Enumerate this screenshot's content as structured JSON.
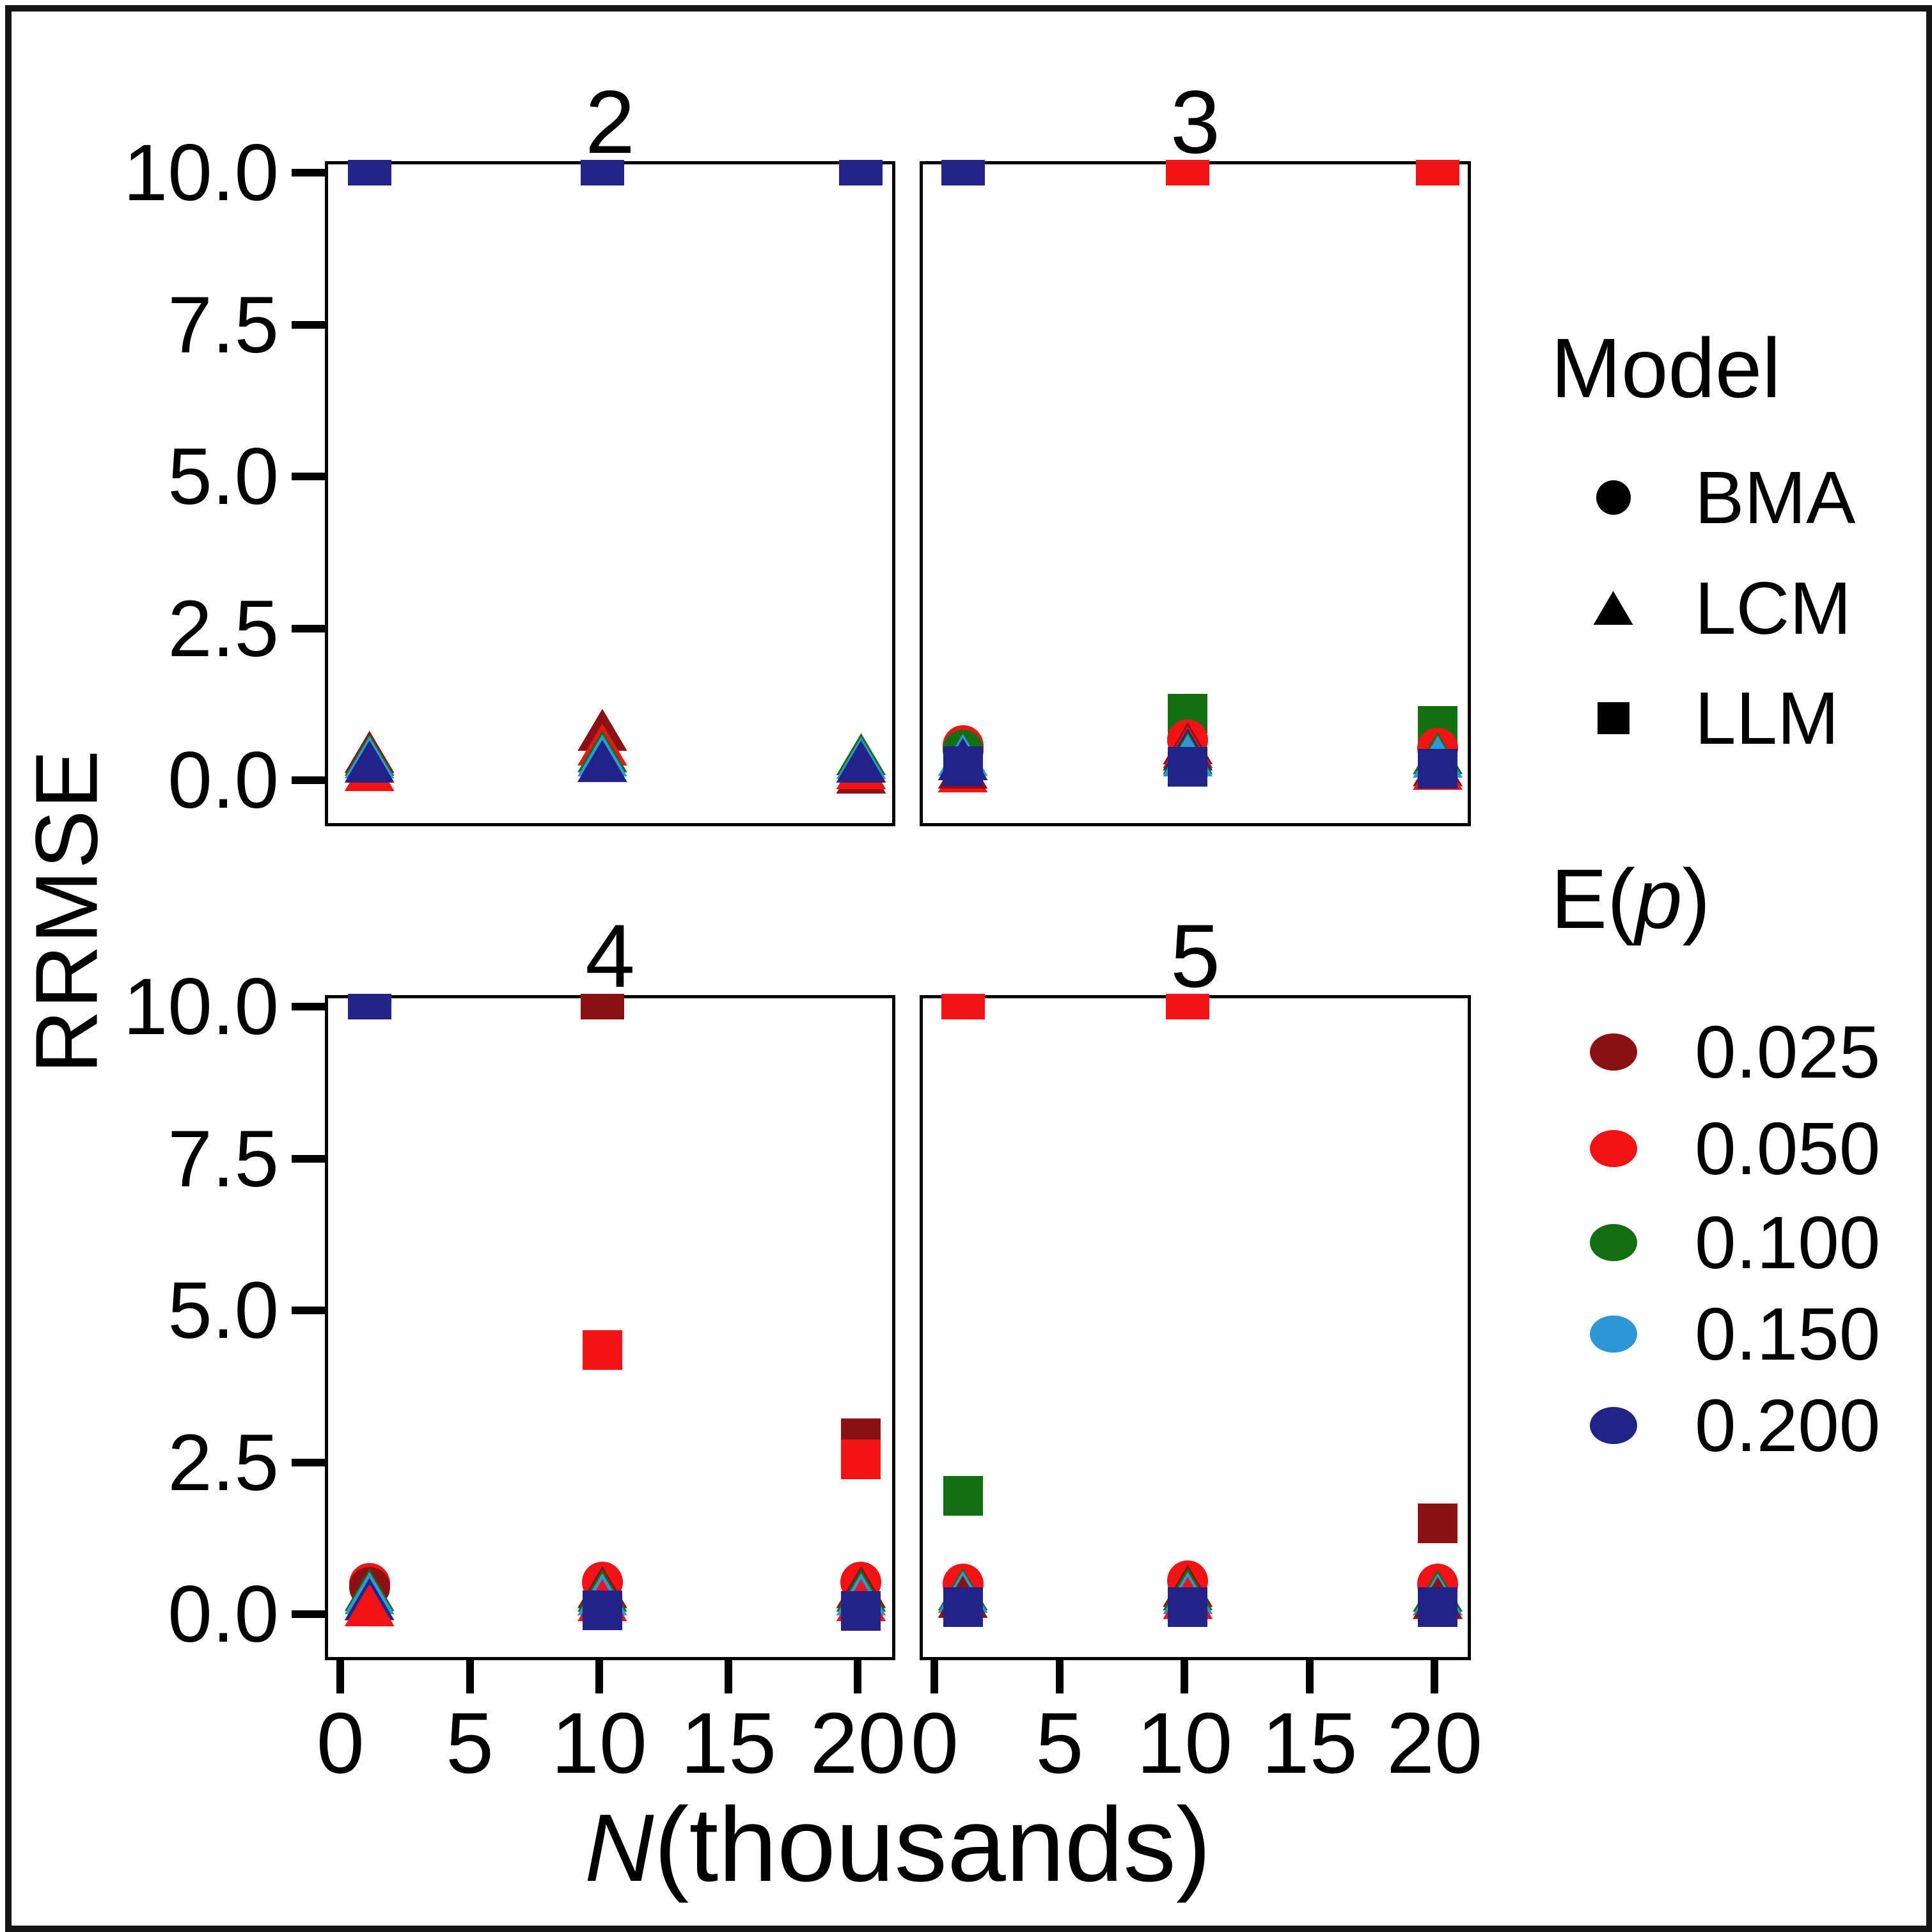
{
  "figure": {
    "y_axis_title": "RRMSE",
    "x_axis_title_var": "N",
    "x_axis_title_rest": "(thousands)"
  },
  "axes": {
    "y_ticks": [
      {
        "v": 10.0,
        "label": "10.0"
      },
      {
        "v": 7.5,
        "label": "7.5"
      },
      {
        "v": 5.0,
        "label": "5.0"
      },
      {
        "v": 2.5,
        "label": "2.5"
      },
      {
        "v": 0.0,
        "label": "0.0"
      }
    ],
    "x_ticks": [
      {
        "v": 0,
        "label": "0"
      },
      {
        "v": 5,
        "label": "5"
      },
      {
        "v": 10,
        "label": "10"
      },
      {
        "v": 15,
        "label": "15"
      },
      {
        "v": 20,
        "label": "20"
      }
    ]
  },
  "legend_model": {
    "title": "Model",
    "items": [
      {
        "label": "BMA",
        "shape": "circle"
      },
      {
        "label": "LCM",
        "shape": "triangle"
      },
      {
        "label": "LLM",
        "shape": "square"
      }
    ]
  },
  "legend_ep": {
    "title_pre": "E(",
    "title_var": "p",
    "title_post": ")",
    "items": [
      {
        "label": "0.025",
        "color": "#8b1212"
      },
      {
        "label": "0.050",
        "color": "#f31316"
      },
      {
        "label": "0.100",
        "color": "#127012"
      },
      {
        "label": "0.150",
        "color": "#2f97d7"
      },
      {
        "label": "0.200",
        "color": "#232387"
      }
    ]
  },
  "chart_data": {
    "type": "scatter",
    "title": "",
    "xlabel": "N (thousands)",
    "ylabel": "RRMSE",
    "x_range": [
      0,
      20
    ],
    "y_range": [
      0,
      10
    ],
    "grid": false,
    "legend_position": "right",
    "facet_values": [
      "2",
      "3",
      "4",
      "5"
    ],
    "model_shapes": {
      "BMA": "circle",
      "LCM": "triangle",
      "LLM": "square"
    },
    "ep_colors": {
      "0.025": "#8b1212",
      "0.050": "#f31316",
      "0.100": "#127012",
      "0.150": "#2f97d7",
      "0.200": "#232387"
    },
    "clip_note": "points with clipped=true sit above the visible axis limit (~10.4) at the panel top edge",
    "facets": [
      {
        "title": "2",
        "points": [
          {
            "x": 1,
            "y": 10.4,
            "model": "LLM",
            "ep": "0.200",
            "clipped": true
          },
          {
            "x": 10,
            "y": 10.4,
            "model": "LLM",
            "ep": "0.200",
            "clipped": true
          },
          {
            "x": 20,
            "y": 10.4,
            "model": "LLM",
            "ep": "0.200",
            "clipped": true
          },
          {
            "x": 1,
            "y": 0.22,
            "model": "LCM",
            "ep": "0.050"
          },
          {
            "x": 1,
            "y": 0.52,
            "model": "LCM",
            "ep": "0.025"
          },
          {
            "x": 1,
            "y": 0.47,
            "model": "LCM",
            "ep": "0.100"
          },
          {
            "x": 1,
            "y": 0.43,
            "model": "LCM",
            "ep": "0.150"
          },
          {
            "x": 1,
            "y": 0.36,
            "model": "LCM",
            "ep": "0.200"
          },
          {
            "x": 10,
            "y": 0.88,
            "model": "LCM",
            "ep": "0.025"
          },
          {
            "x": 10,
            "y": 0.64,
            "model": "LCM",
            "ep": "0.050"
          },
          {
            "x": 10,
            "y": 0.53,
            "model": "LCM",
            "ep": "0.100"
          },
          {
            "x": 10,
            "y": 0.46,
            "model": "LCM",
            "ep": "0.150"
          },
          {
            "x": 10,
            "y": 0.37,
            "model": "LCM",
            "ep": "0.200"
          },
          {
            "x": 20,
            "y": 0.18,
            "model": "LCM",
            "ep": "0.025"
          },
          {
            "x": 20,
            "y": 0.25,
            "model": "LCM",
            "ep": "0.050"
          },
          {
            "x": 20,
            "y": 0.48,
            "model": "LCM",
            "ep": "0.100"
          },
          {
            "x": 20,
            "y": 0.42,
            "model": "LCM",
            "ep": "0.150"
          },
          {
            "x": 20,
            "y": 0.36,
            "model": "LCM",
            "ep": "0.200"
          }
        ]
      },
      {
        "title": "3",
        "points": [
          {
            "x": 1,
            "y": 10.4,
            "model": "LLM",
            "ep": "0.200",
            "clipped": true
          },
          {
            "x": 10,
            "y": 10.4,
            "model": "LLM",
            "ep": "0.050",
            "clipped": true
          },
          {
            "x": 20,
            "y": 10.4,
            "model": "LLM",
            "ep": "0.050",
            "clipped": true
          },
          {
            "x": 1,
            "y": 0.2,
            "model": "LCM",
            "ep": "0.050"
          },
          {
            "x": 1,
            "y": 0.26,
            "model": "LCM",
            "ep": "0.025"
          },
          {
            "x": 1,
            "y": 0.62,
            "model": "BMA",
            "ep": "0.050"
          },
          {
            "x": 1,
            "y": 0.55,
            "model": "BMA",
            "ep": "0.100"
          },
          {
            "x": 1,
            "y": 0.47,
            "model": "LCM",
            "ep": "0.150"
          },
          {
            "x": 1,
            "y": 0.4,
            "model": "LCM",
            "ep": "0.200"
          },
          {
            "x": 1,
            "y": 0.28,
            "model": "LLM",
            "ep": "0.200"
          },
          {
            "x": 10,
            "y": 1.15,
            "model": "LLM",
            "ep": "0.100"
          },
          {
            "x": 10,
            "y": 0.72,
            "model": "BMA",
            "ep": "0.050"
          },
          {
            "x": 10,
            "y": 0.66,
            "model": "LCM",
            "ep": "0.025"
          },
          {
            "x": 10,
            "y": 0.6,
            "model": "LCM",
            "ep": "0.050"
          },
          {
            "x": 10,
            "y": 0.56,
            "model": "LCM",
            "ep": "0.200"
          },
          {
            "x": 10,
            "y": 0.5,
            "model": "LCM",
            "ep": "0.100"
          },
          {
            "x": 10,
            "y": 0.46,
            "model": "LCM",
            "ep": "0.150"
          },
          {
            "x": 10,
            "y": 0.27,
            "model": "LLM",
            "ep": "0.200"
          },
          {
            "x": 20,
            "y": 0.95,
            "model": "LLM",
            "ep": "0.100"
          },
          {
            "x": 20,
            "y": 0.58,
            "model": "BMA",
            "ep": "0.050"
          },
          {
            "x": 20,
            "y": 0.3,
            "model": "LCM",
            "ep": "0.025"
          },
          {
            "x": 20,
            "y": 0.24,
            "model": "LCM",
            "ep": "0.050"
          },
          {
            "x": 20,
            "y": 0.5,
            "model": "LCM",
            "ep": "0.100"
          },
          {
            "x": 20,
            "y": 0.44,
            "model": "LCM",
            "ep": "0.150"
          },
          {
            "x": 20,
            "y": 0.24,
            "model": "LLM",
            "ep": "0.200"
          }
        ]
      },
      {
        "title": "4",
        "points": [
          {
            "x": 1,
            "y": 10.4,
            "model": "LLM",
            "ep": "0.200",
            "clipped": true
          },
          {
            "x": 10,
            "y": 10.4,
            "model": "LLM",
            "ep": "0.025",
            "clipped": true
          },
          {
            "x": 10,
            "y": 4.4,
            "model": "LLM",
            "ep": "0.050"
          },
          {
            "x": 20,
            "y": 2.95,
            "model": "LLM",
            "ep": "0.025"
          },
          {
            "x": 20,
            "y": 2.6,
            "model": "LLM",
            "ep": "0.050"
          },
          {
            "x": 1,
            "y": 0.56,
            "model": "BMA",
            "ep": "0.050"
          },
          {
            "x": 1,
            "y": 0.5,
            "model": "BMA",
            "ep": "0.025"
          },
          {
            "x": 1,
            "y": 0.45,
            "model": "LCM",
            "ep": "0.100"
          },
          {
            "x": 1,
            "y": 0.4,
            "model": "LCM",
            "ep": "0.150"
          },
          {
            "x": 1,
            "y": 0.3,
            "model": "LCM",
            "ep": "0.200"
          },
          {
            "x": 1,
            "y": 0.2,
            "model": "LCM",
            "ep": "0.050"
          },
          {
            "x": 10,
            "y": 0.58,
            "model": "BMA",
            "ep": "0.050"
          },
          {
            "x": 10,
            "y": 0.5,
            "model": "LCM",
            "ep": "0.025"
          },
          {
            "x": 10,
            "y": 0.44,
            "model": "LCM",
            "ep": "0.100"
          },
          {
            "x": 10,
            "y": 0.38,
            "model": "LCM",
            "ep": "0.150"
          },
          {
            "x": 10,
            "y": 0.28,
            "model": "LCM",
            "ep": "0.050"
          },
          {
            "x": 10,
            "y": 0.12,
            "model": "LLM",
            "ep": "0.200"
          },
          {
            "x": 20,
            "y": 0.58,
            "model": "BMA",
            "ep": "0.050"
          },
          {
            "x": 20,
            "y": 0.5,
            "model": "LCM",
            "ep": "0.025"
          },
          {
            "x": 20,
            "y": 0.44,
            "model": "LCM",
            "ep": "0.100"
          },
          {
            "x": 20,
            "y": 0.38,
            "model": "LCM",
            "ep": "0.150"
          },
          {
            "x": 20,
            "y": 0.28,
            "model": "LCM",
            "ep": "0.050"
          },
          {
            "x": 20,
            "y": 0.11,
            "model": "LLM",
            "ep": "0.200"
          }
        ]
      },
      {
        "title": "5",
        "points": [
          {
            "x": 1,
            "y": 10.4,
            "model": "LLM",
            "ep": "0.050",
            "clipped": true
          },
          {
            "x": 10,
            "y": 10.4,
            "model": "LLM",
            "ep": "0.050",
            "clipped": true
          },
          {
            "x": 1,
            "y": 2.0,
            "model": "LLM",
            "ep": "0.100"
          },
          {
            "x": 20,
            "y": 1.55,
            "model": "LLM",
            "ep": "0.025"
          },
          {
            "x": 1,
            "y": 0.55,
            "model": "BMA",
            "ep": "0.050"
          },
          {
            "x": 1,
            "y": 0.46,
            "model": "LCM",
            "ep": "0.100"
          },
          {
            "x": 1,
            "y": 0.42,
            "model": "LCM",
            "ep": "0.150"
          },
          {
            "x": 1,
            "y": 0.34,
            "model": "LCM",
            "ep": "0.025"
          },
          {
            "x": 1,
            "y": 0.17,
            "model": "LLM",
            "ep": "0.200"
          },
          {
            "x": 10,
            "y": 0.6,
            "model": "BMA",
            "ep": "0.050"
          },
          {
            "x": 10,
            "y": 0.52,
            "model": "LCM",
            "ep": "0.025"
          },
          {
            "x": 10,
            "y": 0.46,
            "model": "LCM",
            "ep": "0.100"
          },
          {
            "x": 10,
            "y": 0.4,
            "model": "LCM",
            "ep": "0.150"
          },
          {
            "x": 10,
            "y": 0.32,
            "model": "LCM",
            "ep": "0.050"
          },
          {
            "x": 10,
            "y": 0.17,
            "model": "LLM",
            "ep": "0.200"
          },
          {
            "x": 20,
            "y": 0.55,
            "model": "BMA",
            "ep": "0.050"
          },
          {
            "x": 20,
            "y": 0.44,
            "model": "LCM",
            "ep": "0.100"
          },
          {
            "x": 20,
            "y": 0.38,
            "model": "LCM",
            "ep": "0.150"
          },
          {
            "x": 20,
            "y": 0.32,
            "model": "LCM",
            "ep": "0.025"
          },
          {
            "x": 20,
            "y": 0.17,
            "model": "LLM",
            "ep": "0.200"
          }
        ]
      }
    ]
  }
}
